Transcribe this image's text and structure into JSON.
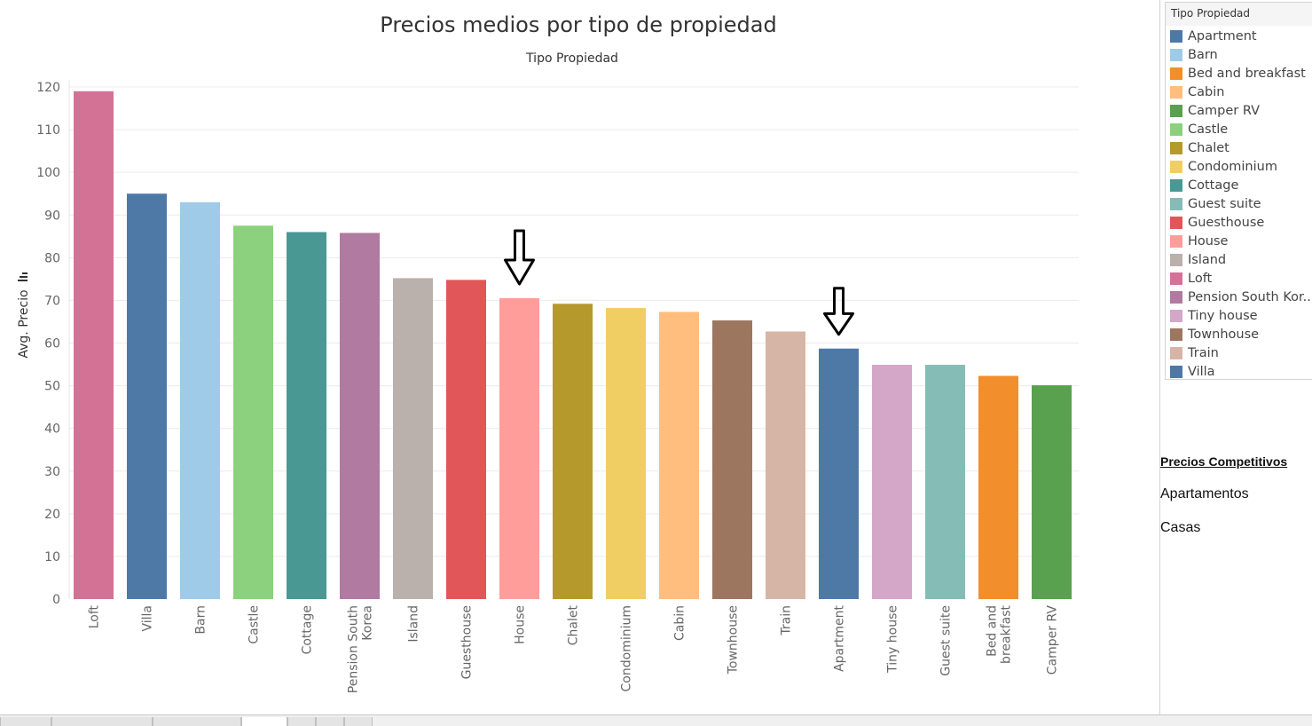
{
  "chart_data": {
    "type": "bar",
    "title": "Precios medios por tipo de propiedad",
    "subtitle": "Tipo Propiedad",
    "ylabel": "Avg. Precio",
    "ylim": [
      0,
      120
    ],
    "yticks": [
      0,
      10,
      20,
      30,
      40,
      50,
      60,
      70,
      80,
      90,
      100,
      110,
      120
    ],
    "grid": true,
    "categories": [
      "Loft",
      "Villa",
      "Barn",
      "Castle",
      "Cottage",
      "Pension  South Korea",
      "Island",
      "Guesthouse",
      "House",
      "Chalet",
      "Condominium",
      "Cabin",
      "Townhouse",
      "Train",
      "Apartment",
      "Tiny house",
      "Guest suite",
      "Bed and breakfast",
      "Camper RV"
    ],
    "category_lines": [
      [
        "Loft"
      ],
      [
        "Villa"
      ],
      [
        "Barn"
      ],
      [
        "Castle"
      ],
      [
        "Cottage"
      ],
      [
        "Pension  South",
        "Korea"
      ],
      [
        "Island"
      ],
      [
        "Guesthouse"
      ],
      [
        "House"
      ],
      [
        "Chalet"
      ],
      [
        "Condominium"
      ],
      [
        "Cabin"
      ],
      [
        "Townhouse"
      ],
      [
        "Train"
      ],
      [
        "Apartment"
      ],
      [
        "Tiny house"
      ],
      [
        "Guest suite"
      ],
      [
        "Bed and",
        "breakfast"
      ],
      [
        "Camper RV"
      ]
    ],
    "values": [
      119,
      95,
      93,
      87.5,
      86,
      85.8,
      75.2,
      74.8,
      70.5,
      69.2,
      68.2,
      67.3,
      65.3,
      62.7,
      58.7,
      54.9,
      54.9,
      52.3,
      50.1
    ],
    "colors": [
      "#d37295",
      "#4e79a7",
      "#a0cbe8",
      "#8cd17d",
      "#499894",
      "#b07aa1",
      "#bab0ac",
      "#e15759",
      "#ff9d9a",
      "#b6992d",
      "#f1ce63",
      "#ffbe7d",
      "#9d7660",
      "#d7b5a6",
      "#4e79a7",
      "#d4a6c8",
      "#86bcb6",
      "#f28e2b",
      "#59a14f"
    ],
    "annotations": [
      {
        "type": "arrow-down",
        "category": "House"
      },
      {
        "type": "arrow-down",
        "category": "Apartment"
      }
    ],
    "legend": {
      "title": "Tipo Propiedad",
      "placement": "right",
      "items": [
        {
          "label": "Apartment",
          "color": "#4e79a7"
        },
        {
          "label": "Barn",
          "color": "#a0cbe8"
        },
        {
          "label": "Bed and breakfast",
          "color": "#f28e2b"
        },
        {
          "label": "Cabin",
          "color": "#ffbe7d"
        },
        {
          "label": "Camper RV",
          "color": "#59a14f"
        },
        {
          "label": "Castle",
          "color": "#8cd17d"
        },
        {
          "label": "Chalet",
          "color": "#b6992d"
        },
        {
          "label": "Condominium",
          "color": "#f1ce63"
        },
        {
          "label": "Cottage",
          "color": "#499894"
        },
        {
          "label": "Guest suite",
          "color": "#86bcb6"
        },
        {
          "label": "Guesthouse",
          "color": "#e15759"
        },
        {
          "label": "House",
          "color": "#ff9d9a"
        },
        {
          "label": "Island",
          "color": "#bab0ac"
        },
        {
          "label": "Loft",
          "color": "#d37295"
        },
        {
          "label": "Pension  South Kor..",
          "color": "#b07aa1"
        },
        {
          "label": "Tiny house",
          "color": "#d4a6c8"
        },
        {
          "label": "Townhouse",
          "color": "#9d7660"
        },
        {
          "label": "Train",
          "color": "#d7b5a6"
        },
        {
          "label": "Villa",
          "color": "#4e79a7"
        }
      ]
    }
  },
  "side_panel": {
    "heading": "Precios Competitivos",
    "links": [
      "Apartamentos",
      "Casas"
    ]
  }
}
